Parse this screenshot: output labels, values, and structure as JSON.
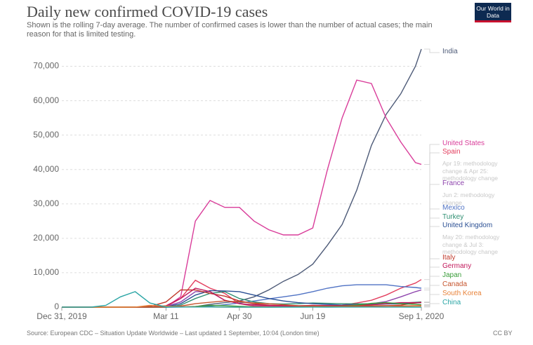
{
  "chart_data": {
    "type": "line",
    "title": "Daily new confirmed COVID-19 cases",
    "subtitle": "Shown is the rolling 7-day average. The number of confirmed cases is lower than the number of actual cases; the main reason for that is limited testing.",
    "source": "Source: European CDC – Situation Update Worldwide – Last updated 1 September, 10:04 (London time)",
    "license": "CC BY",
    "logo": "Our World in Data",
    "x": [
      "2019-12-31",
      "2020-01-10",
      "2020-01-20",
      "2020-01-30",
      "2020-02-09",
      "2020-02-19",
      "2020-02-29",
      "2020-03-11",
      "2020-03-21",
      "2020-03-31",
      "2020-04-10",
      "2020-04-20",
      "2020-04-30",
      "2020-05-10",
      "2020-05-20",
      "2020-05-30",
      "2020-06-09",
      "2020-06-19",
      "2020-06-29",
      "2020-07-09",
      "2020-07-19",
      "2020-07-29",
      "2020-08-08",
      "2020-08-18",
      "2020-08-28",
      "2020-09-01"
    ],
    "xlim": [
      "2019-12-31",
      "2020-09-01"
    ],
    "xticks": [
      {
        "value": "2019-12-31",
        "label": "Dec 31, 2019"
      },
      {
        "value": "2020-03-11",
        "label": "Mar 11"
      },
      {
        "value": "2020-04-30",
        "label": "Apr 30"
      },
      {
        "value": "2020-06-19",
        "label": "Jun 19"
      },
      {
        "value": "2020-09-01",
        "label": "Sep 1, 2020"
      }
    ],
    "ylim": [
      0,
      75000
    ],
    "yticks": [
      0,
      {
        "value": 10000,
        "label": "10,000"
      },
      {
        "value": 20000,
        "label": "20,000"
      },
      {
        "value": 30000,
        "label": "30,000"
      },
      {
        "value": 40000,
        "label": "40,000"
      },
      {
        "value": 50000,
        "label": "50,000"
      },
      {
        "value": 60000,
        "label": "60,000"
      },
      {
        "value": 70000,
        "label": "70,000"
      }
    ],
    "grid": true,
    "series": [
      {
        "name": "India",
        "color": "#4e5b78",
        "values": [
          0,
          0,
          0,
          0,
          0,
          0,
          0,
          0,
          50,
          150,
          800,
          1300,
          1800,
          3000,
          5000,
          7500,
          9500,
          12500,
          18000,
          24000,
          34000,
          47000,
          56000,
          62000,
          70000,
          75000
        ]
      },
      {
        "name": "United States",
        "color": "#d93d9a",
        "values": [
          0,
          0,
          0,
          0,
          0,
          0,
          0,
          50,
          3000,
          25000,
          31000,
          29000,
          29000,
          25000,
          22500,
          21000,
          21000,
          23000,
          40000,
          55000,
          66000,
          65000,
          55000,
          48000,
          42000,
          41500
        ]
      },
      {
        "name": "Spain",
        "color": "#e33f5f",
        "note": "Apr 19: methodology change & Apr 25: methodology change",
        "values": [
          0,
          0,
          0,
          0,
          0,
          0,
          0,
          200,
          2500,
          7800,
          5500,
          4000,
          1000,
          300,
          300,
          200,
          300,
          300,
          400,
          600,
          1200,
          2000,
          3500,
          5500,
          7000,
          8000
        ]
      },
      {
        "name": "France",
        "color": "#8e44ad",
        "note": "Jun 2: methodology change",
        "values": [
          0,
          0,
          0,
          0,
          0,
          0,
          0,
          200,
          1500,
          4500,
          4500,
          2000,
          1000,
          600,
          500,
          400,
          400,
          450,
          500,
          600,
          800,
          1000,
          1600,
          3000,
          4500,
          5000
        ]
      },
      {
        "name": "Mexico",
        "color": "#4f72c4",
        "values": [
          0,
          0,
          0,
          0,
          0,
          0,
          0,
          0,
          20,
          100,
          300,
          700,
          1200,
          1800,
          2400,
          3000,
          3600,
          4500,
          5500,
          6200,
          6500,
          6500,
          6500,
          6000,
          5700,
          5500
        ]
      },
      {
        "name": "Turkey",
        "color": "#2f8f72",
        "values": [
          0,
          0,
          0,
          0,
          0,
          0,
          0,
          0,
          600,
          2500,
          4000,
          4500,
          2500,
          1500,
          1000,
          900,
          1000,
          1200,
          1100,
          1000,
          950,
          950,
          1000,
          1150,
          1400,
          1500
        ]
      },
      {
        "name": "United Kingdom",
        "color": "#2a4f93",
        "note": "May 20: methodology change & Jul 3: methodology change",
        "values": [
          0,
          0,
          0,
          0,
          0,
          0,
          0,
          100,
          1000,
          3500,
          4800,
          4700,
          4500,
          3500,
          2500,
          1800,
          1300,
          1000,
          800,
          600,
          600,
          700,
          900,
          1000,
          1200,
          1300
        ]
      },
      {
        "name": "Italy",
        "color": "#c0392b",
        "values": [
          0,
          0,
          0,
          0,
          0,
          0,
          200,
          1500,
          5000,
          5000,
          4000,
          3200,
          1800,
          1000,
          600,
          400,
          300,
          250,
          200,
          200,
          250,
          300,
          400,
          600,
          1200,
          1400
        ]
      },
      {
        "name": "Germany",
        "color": "#c2185b",
        "values": [
          0,
          0,
          0,
          0,
          0,
          0,
          50,
          400,
          2500,
          5500,
          4500,
          2000,
          1000,
          700,
          500,
          400,
          350,
          500,
          400,
          400,
          500,
          700,
          1000,
          1300,
          1300,
          1300
        ]
      },
      {
        "name": "Japan",
        "color": "#3a9d3a",
        "values": [
          0,
          0,
          0,
          0,
          0,
          20,
          20,
          50,
          50,
          200,
          500,
          450,
          250,
          80,
          30,
          40,
          50,
          60,
          100,
          300,
          600,
          1100,
          1300,
          1000,
          800,
          700
        ]
      },
      {
        "name": "Canada",
        "color": "#c6552e",
        "values": [
          0,
          0,
          0,
          0,
          0,
          0,
          0,
          50,
          300,
          1000,
          1400,
          1800,
          1500,
          1200,
          1000,
          700,
          400,
          350,
          300,
          300,
          350,
          400,
          400,
          350,
          400,
          450
        ]
      },
      {
        "name": "South Korea",
        "color": "#e8833a",
        "values": [
          0,
          0,
          0,
          0,
          0,
          20,
          500,
          300,
          100,
          100,
          50,
          20,
          10,
          20,
          20,
          40,
          50,
          50,
          50,
          40,
          40,
          30,
          30,
          150,
          300,
          280
        ]
      },
      {
        "name": "China",
        "color": "#2aa5a5",
        "values": [
          0,
          0,
          0,
          500,
          3000,
          4500,
          1200,
          50,
          50,
          50,
          50,
          30,
          10,
          10,
          10,
          10,
          10,
          20,
          10,
          20,
          30,
          50,
          30,
          20,
          10,
          10
        ]
      }
    ]
  }
}
